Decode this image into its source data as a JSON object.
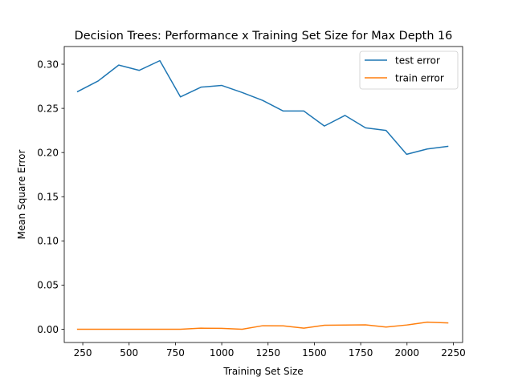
{
  "chart_data": {
    "type": "line",
    "title": "Decision Trees: Performance x Training Set Size for Max Depth 16",
    "xlabel": "Training Set Size",
    "ylabel": "Mean Square Error",
    "xlim": [
      150,
      2300
    ],
    "ylim": [
      -0.015,
      0.32
    ],
    "xticks": [
      250,
      500,
      750,
      1000,
      1250,
      1500,
      1750,
      2000,
      2250
    ],
    "yticks": [
      0.0,
      0.05,
      0.1,
      0.15,
      0.2,
      0.25,
      0.3
    ],
    "xtick_labels": [
      "250",
      "500",
      "750",
      "1000",
      "1250",
      "1500",
      "1750",
      "2000",
      "2250"
    ],
    "ytick_labels": [
      "0.00",
      "0.05",
      "0.10",
      "0.15",
      "0.20",
      "0.25",
      "0.30"
    ],
    "grid": false,
    "legend_position": "top-right",
    "x": [
      222,
      333,
      444,
      555,
      666,
      777,
      888,
      999,
      1110,
      1221,
      1332,
      1443,
      1554,
      1665,
      1776,
      1887,
      1998,
      2109,
      2220
    ],
    "series": [
      {
        "name": "test error",
        "color": "#1f77b4",
        "values": [
          0.269,
          0.281,
          0.299,
          0.293,
          0.304,
          0.263,
          0.274,
          0.276,
          0.268,
          0.259,
          0.247,
          0.247,
          0.23,
          0.242,
          0.228,
          0.225,
          0.198,
          0.204,
          0.207
        ]
      },
      {
        "name": "train error",
        "color": "#ff7f0e",
        "values": [
          0.0,
          0.0,
          0.0,
          0.0,
          0.0,
          0.0,
          0.0012,
          0.001,
          0.0,
          0.004,
          0.0038,
          0.0012,
          0.0045,
          0.0048,
          0.005,
          0.0025,
          0.0048,
          0.008,
          0.0072
        ]
      }
    ]
  }
}
